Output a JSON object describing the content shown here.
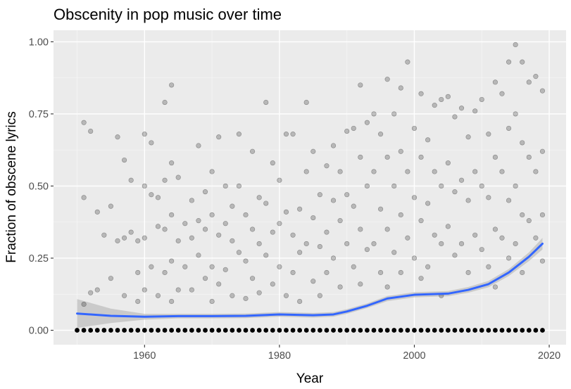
{
  "chart_data": {
    "type": "scatter",
    "title": "Obscenity in pop music over time",
    "xlabel": "Year",
    "ylabel": "Fraction of obscene lyrics",
    "xlim": [
      1946.5,
      2022.5
    ],
    "ylim": [
      -0.05,
      1.04
    ],
    "x_ticks": [
      1960,
      1980,
      2000,
      2020
    ],
    "x_tick_labels": [
      "1960",
      "1980",
      "2000",
      "2020"
    ],
    "y_ticks": [
      0.0,
      0.25,
      0.5,
      0.75,
      1.0
    ],
    "y_tick_labels": [
      "0.00",
      "0.25",
      "0.50",
      "0.75",
      "1.00"
    ],
    "grid": true,
    "colors": {
      "panel": "#ebebeb",
      "grid_major": "#ffffff",
      "points": "#000000",
      "smooth_line": "#3366ff",
      "ribbon": "#bfbfbf"
    },
    "points_note_zero_line": "Each year 1950-2019 has many songs at 0.00",
    "zero_years": [
      1950,
      2019
    ],
    "scatter_points": [
      [
        1951,
        0.72
      ],
      [
        1951,
        0.46
      ],
      [
        1951,
        0.09
      ],
      [
        1952,
        0.69
      ],
      [
        1952,
        0.13
      ],
      [
        1953,
        0.41
      ],
      [
        1953,
        0.14
      ],
      [
        1954,
        0.33
      ],
      [
        1955,
        0.18
      ],
      [
        1955,
        0.43
      ],
      [
        1956,
        0.67
      ],
      [
        1956,
        0.31
      ],
      [
        1957,
        0.32
      ],
      [
        1957,
        0.59
      ],
      [
        1957,
        0.12
      ],
      [
        1958,
        0.52
      ],
      [
        1958,
        0.34
      ],
      [
        1959,
        0.31
      ],
      [
        1959,
        0.2
      ],
      [
        1959,
        0.1
      ],
      [
        1960,
        0.68
      ],
      [
        1960,
        0.5
      ],
      [
        1960,
        0.32
      ],
      [
        1960,
        0.14
      ],
      [
        1961,
        0.65
      ],
      [
        1961,
        0.47
      ],
      [
        1961,
        0.22
      ],
      [
        1962,
        0.46
      ],
      [
        1962,
        0.36
      ],
      [
        1962,
        0.12
      ],
      [
        1963,
        0.79
      ],
      [
        1963,
        0.52
      ],
      [
        1963,
        0.35
      ],
      [
        1963,
        0.2
      ],
      [
        1964,
        0.85
      ],
      [
        1964,
        0.58
      ],
      [
        1964,
        0.4
      ],
      [
        1964,
        0.24
      ],
      [
        1964,
        0.1
      ],
      [
        1965,
        0.53
      ],
      [
        1965,
        0.31
      ],
      [
        1965,
        0.14
      ],
      [
        1966,
        0.37
      ],
      [
        1966,
        0.22
      ],
      [
        1967,
        0.45
      ],
      [
        1967,
        0.32
      ],
      [
        1967,
        0.14
      ],
      [
        1968,
        0.64
      ],
      [
        1968,
        0.38
      ],
      [
        1968,
        0.26
      ],
      [
        1969,
        0.48
      ],
      [
        1969,
        0.35
      ],
      [
        1969,
        0.18
      ],
      [
        1970,
        0.55
      ],
      [
        1970,
        0.4
      ],
      [
        1970,
        0.22
      ],
      [
        1970,
        0.1
      ],
      [
        1971,
        0.67
      ],
      [
        1971,
        0.33
      ],
      [
        1971,
        0.16
      ],
      [
        1972,
        0.5
      ],
      [
        1972,
        0.37
      ],
      [
        1972,
        0.21
      ],
      [
        1973,
        0.43
      ],
      [
        1973,
        0.31
      ],
      [
        1973,
        0.12
      ],
      [
        1974,
        0.68
      ],
      [
        1974,
        0.5
      ],
      [
        1974,
        0.27
      ],
      [
        1975,
        0.4
      ],
      [
        1975,
        0.24
      ],
      [
        1975,
        0.11
      ],
      [
        1976,
        0.62
      ],
      [
        1976,
        0.35
      ],
      [
        1976,
        0.18
      ],
      [
        1977,
        0.46
      ],
      [
        1977,
        0.3
      ],
      [
        1977,
        0.13
      ],
      [
        1978,
        0.79
      ],
      [
        1978,
        0.44
      ],
      [
        1978,
        0.26
      ],
      [
        1979,
        0.58
      ],
      [
        1979,
        0.34
      ],
      [
        1979,
        0.16
      ],
      [
        1980,
        0.52
      ],
      [
        1980,
        0.37
      ],
      [
        1980,
        0.22
      ],
      [
        1981,
        0.68
      ],
      [
        1981,
        0.41
      ],
      [
        1981,
        0.12
      ],
      [
        1982,
        0.68
      ],
      [
        1982,
        0.33
      ],
      [
        1982,
        0.2
      ],
      [
        1983,
        0.42
      ],
      [
        1983,
        0.27
      ],
      [
        1983,
        0.1
      ],
      [
        1984,
        0.79
      ],
      [
        1984,
        0.55
      ],
      [
        1984,
        0.3
      ],
      [
        1985,
        0.62
      ],
      [
        1985,
        0.39
      ],
      [
        1985,
        0.17
      ],
      [
        1986,
        0.47
      ],
      [
        1986,
        0.29
      ],
      [
        1986,
        0.12
      ],
      [
        1987,
        0.57
      ],
      [
        1987,
        0.34
      ],
      [
        1987,
        0.2
      ],
      [
        1988,
        0.64
      ],
      [
        1988,
        0.45
      ],
      [
        1988,
        0.25
      ],
      [
        1989,
        0.55
      ],
      [
        1989,
        0.38
      ],
      [
        1989,
        0.15
      ],
      [
        1990,
        0.69
      ],
      [
        1990,
        0.47
      ],
      [
        1990,
        0.3
      ],
      [
        1991,
        0.7
      ],
      [
        1991,
        0.43
      ],
      [
        1991,
        0.22
      ],
      [
        1992,
        0.85
      ],
      [
        1992,
        0.6
      ],
      [
        1992,
        0.35
      ],
      [
        1992,
        0.16
      ],
      [
        1993,
        0.72
      ],
      [
        1993,
        0.5
      ],
      [
        1993,
        0.28
      ],
      [
        1994,
        0.75
      ],
      [
        1994,
        0.55
      ],
      [
        1994,
        0.3
      ],
      [
        1995,
        0.68
      ],
      [
        1995,
        0.42
      ],
      [
        1995,
        0.2
      ],
      [
        1996,
        0.87
      ],
      [
        1996,
        0.6
      ],
      [
        1996,
        0.35
      ],
      [
        1996,
        0.15
      ],
      [
        1997,
        0.75
      ],
      [
        1997,
        0.5
      ],
      [
        1997,
        0.27
      ],
      [
        1998,
        0.84
      ],
      [
        1998,
        0.62
      ],
      [
        1998,
        0.4
      ],
      [
        1998,
        0.2
      ],
      [
        1999,
        0.93
      ],
      [
        1999,
        0.55
      ],
      [
        1999,
        0.32
      ],
      [
        2000,
        0.7
      ],
      [
        2000,
        0.46
      ],
      [
        2000,
        0.25
      ],
      [
        2001,
        0.82
      ],
      [
        2001,
        0.6
      ],
      [
        2001,
        0.38
      ],
      [
        2001,
        0.18
      ],
      [
        2002,
        0.66
      ],
      [
        2002,
        0.44
      ],
      [
        2002,
        0.22
      ],
      [
        2003,
        0.78
      ],
      [
        2003,
        0.55
      ],
      [
        2003,
        0.33
      ],
      [
        2004,
        0.8
      ],
      [
        2004,
        0.5
      ],
      [
        2004,
        0.3
      ],
      [
        2004,
        0.12
      ],
      [
        2005,
        0.81
      ],
      [
        2005,
        0.58
      ],
      [
        2005,
        0.36
      ],
      [
        2006,
        0.74
      ],
      [
        2006,
        0.48
      ],
      [
        2006,
        0.26
      ],
      [
        2007,
        0.77
      ],
      [
        2007,
        0.52
      ],
      [
        2007,
        0.3
      ],
      [
        2008,
        0.67
      ],
      [
        2008,
        0.45
      ],
      [
        2008,
        0.2
      ],
      [
        2009,
        0.76
      ],
      [
        2009,
        0.55
      ],
      [
        2009,
        0.33
      ],
      [
        2010,
        0.8
      ],
      [
        2010,
        0.5
      ],
      [
        2010,
        0.28
      ],
      [
        2011,
        0.68
      ],
      [
        2011,
        0.46
      ],
      [
        2011,
        0.22
      ],
      [
        2012,
        0.86
      ],
      [
        2012,
        0.6
      ],
      [
        2012,
        0.35
      ],
      [
        2012,
        0.15
      ],
      [
        2013,
        0.82
      ],
      [
        2013,
        0.55
      ],
      [
        2013,
        0.32
      ],
      [
        2014,
        0.93
      ],
      [
        2014,
        0.7
      ],
      [
        2014,
        0.45
      ],
      [
        2014,
        0.25
      ],
      [
        2015,
        0.99
      ],
      [
        2015,
        0.75
      ],
      [
        2015,
        0.5
      ],
      [
        2015,
        0.3
      ],
      [
        2016,
        0.93
      ],
      [
        2016,
        0.65
      ],
      [
        2016,
        0.4
      ],
      [
        2016,
        0.2
      ],
      [
        2017,
        0.86
      ],
      [
        2017,
        0.6
      ],
      [
        2017,
        0.38
      ],
      [
        2018,
        0.88
      ],
      [
        2018,
        0.55
      ],
      [
        2018,
        0.32
      ],
      [
        2019,
        0.83
      ],
      [
        2019,
        0.62
      ],
      [
        2019,
        0.4
      ],
      [
        2019,
        0.24
      ]
    ],
    "smooth_line": {
      "x": [
        1950,
        1955,
        1960,
        1965,
        1970,
        1975,
        1980,
        1985,
        1988,
        1990,
        1993,
        1996,
        2000,
        2005,
        2008,
        2011,
        2014,
        2017,
        2019
      ],
      "y": [
        0.058,
        0.05,
        0.047,
        0.049,
        0.049,
        0.05,
        0.055,
        0.052,
        0.055,
        0.065,
        0.085,
        0.11,
        0.123,
        0.127,
        0.14,
        0.16,
        0.2,
        0.255,
        0.3
      ],
      "ribbon_half_width": [
        0.05,
        0.025,
        0.01,
        0.008,
        0.008,
        0.008,
        0.008,
        0.008,
        0.008,
        0.008,
        0.008,
        0.009,
        0.009,
        0.009,
        0.01,
        0.011,
        0.012,
        0.015,
        0.02
      ]
    }
  }
}
